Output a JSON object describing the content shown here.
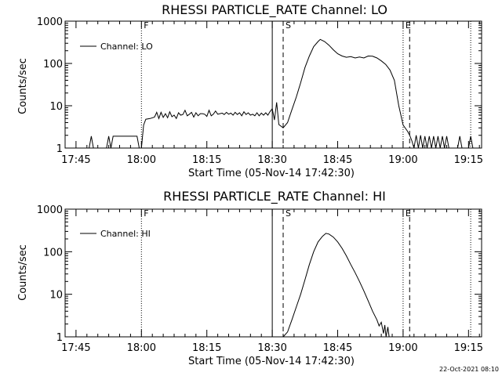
{
  "chart_data": [
    {
      "type": "line",
      "title": "RHESSI PARTICLE_RATE Channel: LO",
      "xlabel": "Start Time (05-Nov-14 17:42:30)",
      "ylabel": "Counts/sec",
      "yscale": "log",
      "ylim": [
        1,
        1000
      ],
      "xlim_min_from_start": [
        0,
        95.5
      ],
      "xticks": [
        "17:45",
        "18:00",
        "18:15",
        "18:30",
        "18:45",
        "19:00",
        "19:15"
      ],
      "yticks": [
        "1",
        "10",
        "100",
        "1000"
      ],
      "legend": "Channel: LO",
      "markers": [
        {
          "t": 17.5,
          "style": "dotted",
          "label": "F"
        },
        {
          "t": 47.5,
          "style": "solid",
          "label": ""
        },
        {
          "t": 50.0,
          "style": "dashed",
          "label": "S"
        },
        {
          "t": 77.5,
          "style": "dotted",
          "label": "E"
        },
        {
          "t": 79.0,
          "style": "dashed",
          "label": ""
        },
        {
          "t": 93.0,
          "style": "dotted",
          "label": ""
        }
      ],
      "series": [
        {
          "name": "Channel: LO",
          "segments": [
            [
              [
                5.5,
                1
              ],
              [
                6.0,
                1.9
              ],
              [
                6.5,
                1
              ]
            ],
            [
              [
                9.5,
                1
              ],
              [
                10.0,
                1.9
              ],
              [
                10.5,
                1
              ],
              [
                11.0,
                1.9
              ],
              [
                11.5,
                1.9
              ],
              [
                12.5,
                1.9
              ],
              [
                13.5,
                1.9
              ],
              [
                14.5,
                1.9
              ],
              [
                15.5,
                1.9
              ],
              [
                16.5,
                1.9
              ],
              [
                17.0,
                1
              ],
              [
                17.5,
                1
              ],
              [
                18.0,
                3.5
              ],
              [
                18.5,
                4.8
              ],
              [
                19.5,
                5.0
              ],
              [
                20.5,
                5.4
              ],
              [
                21.0,
                7.0
              ],
              [
                21.5,
                5.0
              ],
              [
                22.0,
                7.0
              ],
              [
                22.5,
                5.3
              ],
              [
                23.0,
                6.5
              ],
              [
                23.5,
                5.2
              ],
              [
                24.0,
                7.2
              ],
              [
                24.5,
                5.5
              ],
              [
                25.0,
                6.0
              ],
              [
                25.5,
                5.0
              ],
              [
                26.0,
                6.8
              ],
              [
                26.5,
                6.0
              ],
              [
                27.0,
                6.2
              ],
              [
                27.5,
                7.8
              ],
              [
                28.0,
                5.8
              ],
              [
                28.5,
                6.3
              ],
              [
                29.0,
                7.0
              ],
              [
                29.5,
                5.4
              ],
              [
                30.0,
                6.8
              ],
              [
                30.5,
                5.8
              ],
              [
                31.0,
                6.5
              ],
              [
                31.5,
                6.5
              ],
              [
                32.0,
                6.3
              ],
              [
                32.5,
                5.6
              ],
              [
                33.0,
                7.8
              ],
              [
                33.5,
                5.8
              ],
              [
                34.0,
                6.3
              ],
              [
                34.5,
                7.5
              ],
              [
                35.0,
                6.3
              ],
              [
                35.5,
                6.5
              ],
              [
                36.0,
                6.7
              ],
              [
                36.5,
                6.2
              ],
              [
                37.0,
                7.0
              ],
              [
                37.5,
                6.3
              ],
              [
                38.0,
                6.7
              ],
              [
                38.5,
                6.0
              ],
              [
                39.0,
                7.0
              ],
              [
                39.5,
                6.2
              ],
              [
                40.0,
                6.8
              ],
              [
                40.5,
                5.8
              ],
              [
                41.0,
                7.2
              ],
              [
                41.5,
                6.2
              ],
              [
                42.0,
                6.8
              ],
              [
                42.5,
                6.0
              ],
              [
                43.0,
                6.3
              ],
              [
                43.5,
                5.8
              ],
              [
                44.0,
                6.8
              ],
              [
                44.5,
                5.8
              ],
              [
                45.0,
                6.7
              ],
              [
                45.5,
                6.0
              ],
              [
                46.0,
                6.8
              ],
              [
                46.5,
                6.0
              ],
              [
                47.0,
                7.3
              ],
              [
                47.5,
                8.5
              ],
              [
                48.0,
                4.6
              ],
              [
                48.5,
                12
              ],
              [
                49.0,
                3.6
              ],
              [
                50.0,
                3.0
              ],
              [
                51.0,
                4.0
              ],
              [
                52.0,
                8
              ],
              [
                53.0,
                16
              ],
              [
                54.0,
                35
              ],
              [
                55.0,
                80
              ],
              [
                56.0,
                150
              ],
              [
                57.0,
                250
              ],
              [
                58.0,
                330
              ],
              [
                58.5,
                370
              ],
              [
                59.5,
                330
              ],
              [
                60.5,
                270
              ],
              [
                61.5,
                210
              ],
              [
                62.5,
                170
              ],
              [
                63.5,
                150
              ],
              [
                64.5,
                140
              ],
              [
                65.5,
                145
              ],
              [
                66.5,
                135
              ],
              [
                67.5,
                142
              ],
              [
                68.5,
                135
              ],
              [
                69.5,
                150
              ],
              [
                70.5,
                148
              ],
              [
                71.5,
                135
              ],
              [
                72.5,
                115
              ],
              [
                73.5,
                95
              ],
              [
                74.5,
                70
              ],
              [
                75.5,
                40
              ],
              [
                76.5,
                10
              ],
              [
                77.0,
                6
              ],
              [
                77.5,
                3.5
              ],
              [
                78.5,
                2.5
              ],
              [
                79.0,
                2.0
              ],
              [
                79.5,
                1.5
              ],
              [
                80.0,
                1.0
              ],
              [
                80.5,
                2.0
              ],
              [
                81.0,
                1.0
              ],
              [
                81.5,
                2.0
              ],
              [
                82.0,
                1.0
              ],
              [
                82.5,
                1.9
              ],
              [
                83.0,
                1.0
              ],
              [
                83.5,
                1.9
              ],
              [
                84.0,
                1.0
              ],
              [
                84.5,
                1.9
              ],
              [
                85.0,
                1.0
              ],
              [
                85.5,
                1.9
              ],
              [
                86.0,
                1.0
              ],
              [
                86.5,
                1.9
              ],
              [
                87.0,
                1.0
              ],
              [
                87.5,
                1.9
              ],
              [
                88.0,
                1.0
              ]
            ],
            [
              [
                90.0,
                1
              ],
              [
                90.5,
                1.9
              ],
              [
                91.0,
                1
              ]
            ],
            [
              [
                92.5,
                1
              ],
              [
                93.0,
                1.9
              ],
              [
                93.5,
                1
              ]
            ]
          ]
        }
      ]
    },
    {
      "type": "line",
      "title": "RHESSI PARTICLE_RATE Channel: HI",
      "xlabel": "Start Time (05-Nov-14 17:42:30)",
      "ylabel": "Counts/sec",
      "yscale": "log",
      "ylim": [
        1,
        1000
      ],
      "xlim_min_from_start": [
        0,
        95.5
      ],
      "xticks": [
        "17:45",
        "18:00",
        "18:15",
        "18:30",
        "18:45",
        "19:00",
        "19:15"
      ],
      "yticks": [
        "1",
        "10",
        "100",
        "1000"
      ],
      "legend": "Channel: HI",
      "markers": [
        {
          "t": 17.5,
          "style": "dotted",
          "label": "F"
        },
        {
          "t": 47.5,
          "style": "solid",
          "label": ""
        },
        {
          "t": 50.0,
          "style": "dashed",
          "label": "S"
        },
        {
          "t": 77.5,
          "style": "dotted",
          "label": "E"
        },
        {
          "t": 79.0,
          "style": "dashed",
          "label": ""
        },
        {
          "t": 93.0,
          "style": "dotted",
          "label": ""
        }
      ],
      "series": [
        {
          "name": "Channel: HI",
          "segments": [
            [
              [
                50.0,
                1
              ],
              [
                51.0,
                1.3
              ],
              [
                52.0,
                2.5
              ],
              [
                53.0,
                5
              ],
              [
                54.0,
                10
              ],
              [
                55.0,
                22
              ],
              [
                56.0,
                50
              ],
              [
                57.0,
                100
              ],
              [
                58.0,
                170
              ],
              [
                59.0,
                230
              ],
              [
                59.8,
                270
              ],
              [
                60.5,
                260
              ],
              [
                61.5,
                220
              ],
              [
                62.5,
                170
              ],
              [
                63.5,
                120
              ],
              [
                64.5,
                80
              ],
              [
                65.5,
                50
              ],
              [
                66.5,
                32
              ],
              [
                67.5,
                20
              ],
              [
                68.5,
                12
              ],
              [
                69.5,
                7
              ],
              [
                70.5,
                4
              ],
              [
                71.5,
                2.5
              ],
              [
                72.0,
                1.8
              ],
              [
                72.5,
                2.2
              ],
              [
                73.0,
                1.2
              ],
              [
                73.3,
                1.9
              ],
              [
                73.6,
                1.0
              ],
              [
                74.0,
                1.7
              ],
              [
                74.3,
                1.0
              ]
            ]
          ]
        }
      ]
    }
  ],
  "footer": {
    "timestamp": "22-Oct-2021 08:10"
  }
}
